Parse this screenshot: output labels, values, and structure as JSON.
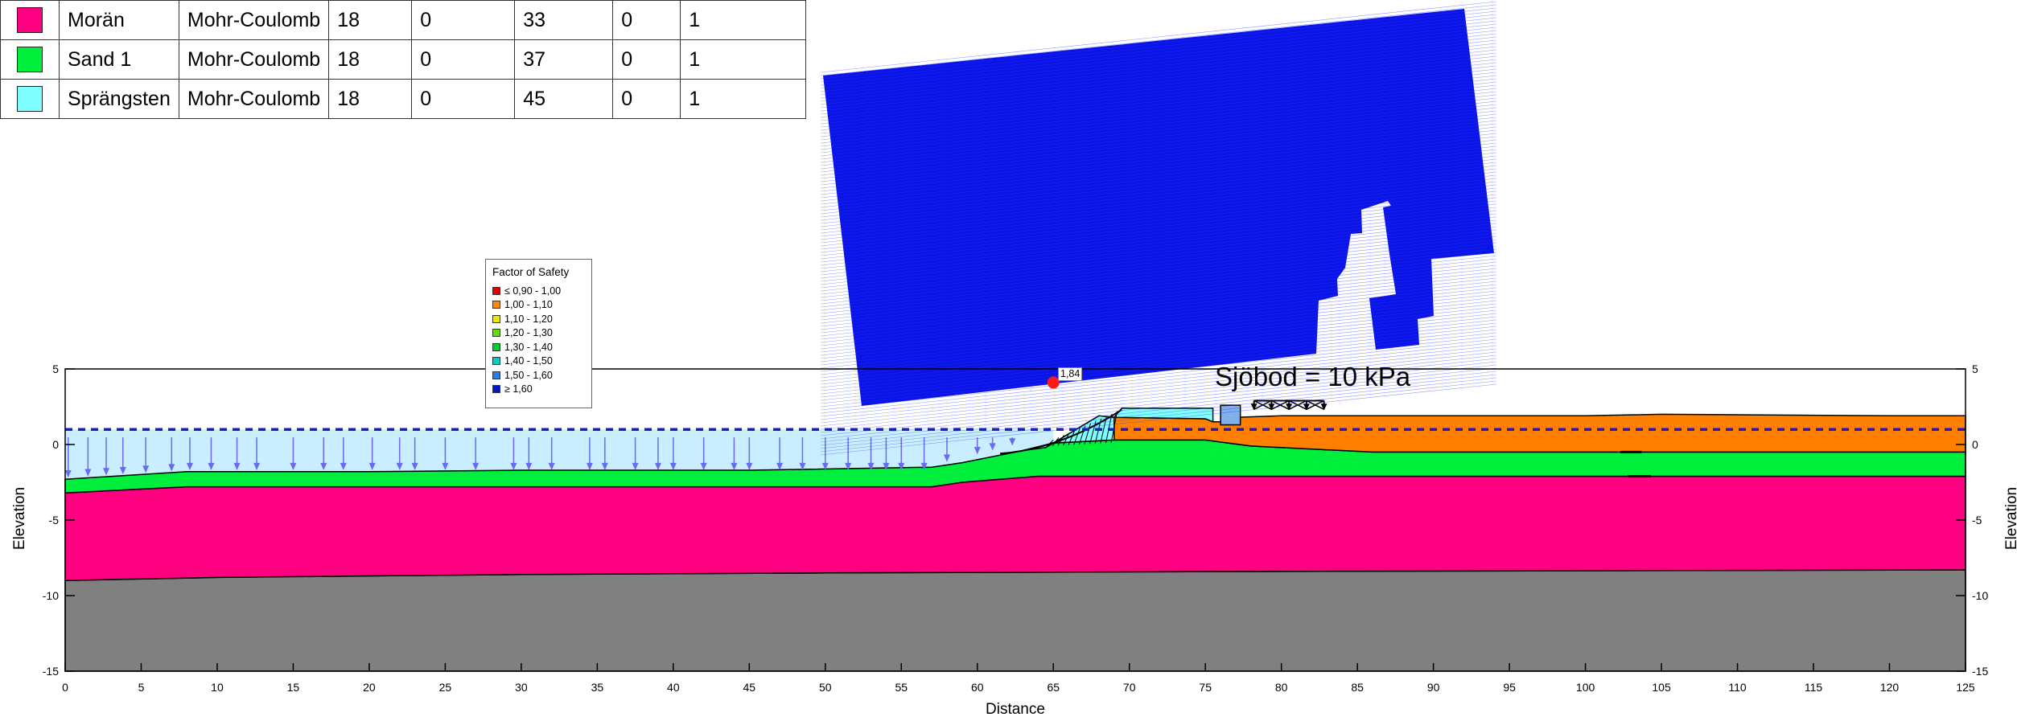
{
  "material_table": {
    "rows": [
      {
        "color": "#ff0080",
        "name": "Morän",
        "model": "Mohr-Coulomb",
        "unit_weight": "18",
        "cohesion": "0",
        "phi": "33",
        "c2": "0",
        "c3": "1"
      },
      {
        "color": "#00ee3c",
        "name": "Sand 1",
        "model": "Mohr-Coulomb",
        "unit_weight": "18",
        "cohesion": "0",
        "phi": "37",
        "c2": "0",
        "c3": "1"
      },
      {
        "color": "#80ffff",
        "name": "Sprängsten",
        "model": "Mohr-Coulomb",
        "unit_weight": "18",
        "cohesion": "0",
        "phi": "45",
        "c2": "0",
        "c3": "1"
      }
    ]
  },
  "legend": {
    "title": "Factor of Safety",
    "items": [
      {
        "label": "≤ 0,90 - 1,00",
        "color": "#e00000"
      },
      {
        "label": "1,00 - 1,10",
        "color": "#ff8c00"
      },
      {
        "label": "1,10 - 1,20",
        "color": "#e8e800"
      },
      {
        "label": "1,20 - 1,30",
        "color": "#66dd00"
      },
      {
        "label": "1,30 - 1,40",
        "color": "#00cc33"
      },
      {
        "label": "1,40 - 1,50",
        "color": "#00cccc"
      },
      {
        "label": "1,50 - 1,60",
        "color": "#2a7fe0"
      },
      {
        "label": "≥ 1,60",
        "color": "#0018c8"
      }
    ]
  },
  "plot": {
    "load_label": "Sjöbod = 10 kPa",
    "critical_fos": "1,84",
    "xlabel": "Distance",
    "ylabel": "Elevation",
    "x_ticks": [
      "0",
      "5",
      "10",
      "15",
      "20",
      "25",
      "30",
      "35",
      "40",
      "45",
      "50",
      "55",
      "60",
      "65",
      "70",
      "75",
      "80",
      "85",
      "90",
      "95",
      "100",
      "105",
      "110",
      "115",
      "120",
      "125"
    ],
    "y_ticks": [
      "5",
      "0",
      "-5",
      "-10",
      "-15"
    ],
    "colors": {
      "moran": "#ff0080",
      "sand": "#00ee3c",
      "sprangsten": "#80ffff",
      "bedrock": "#808080",
      "fill_orange": "#ff8000",
      "water": "#c8eeff",
      "water_line": "#1a1acc",
      "slip_grid": "#0a14e6",
      "critical_point": "#ff1a1a"
    }
  }
}
